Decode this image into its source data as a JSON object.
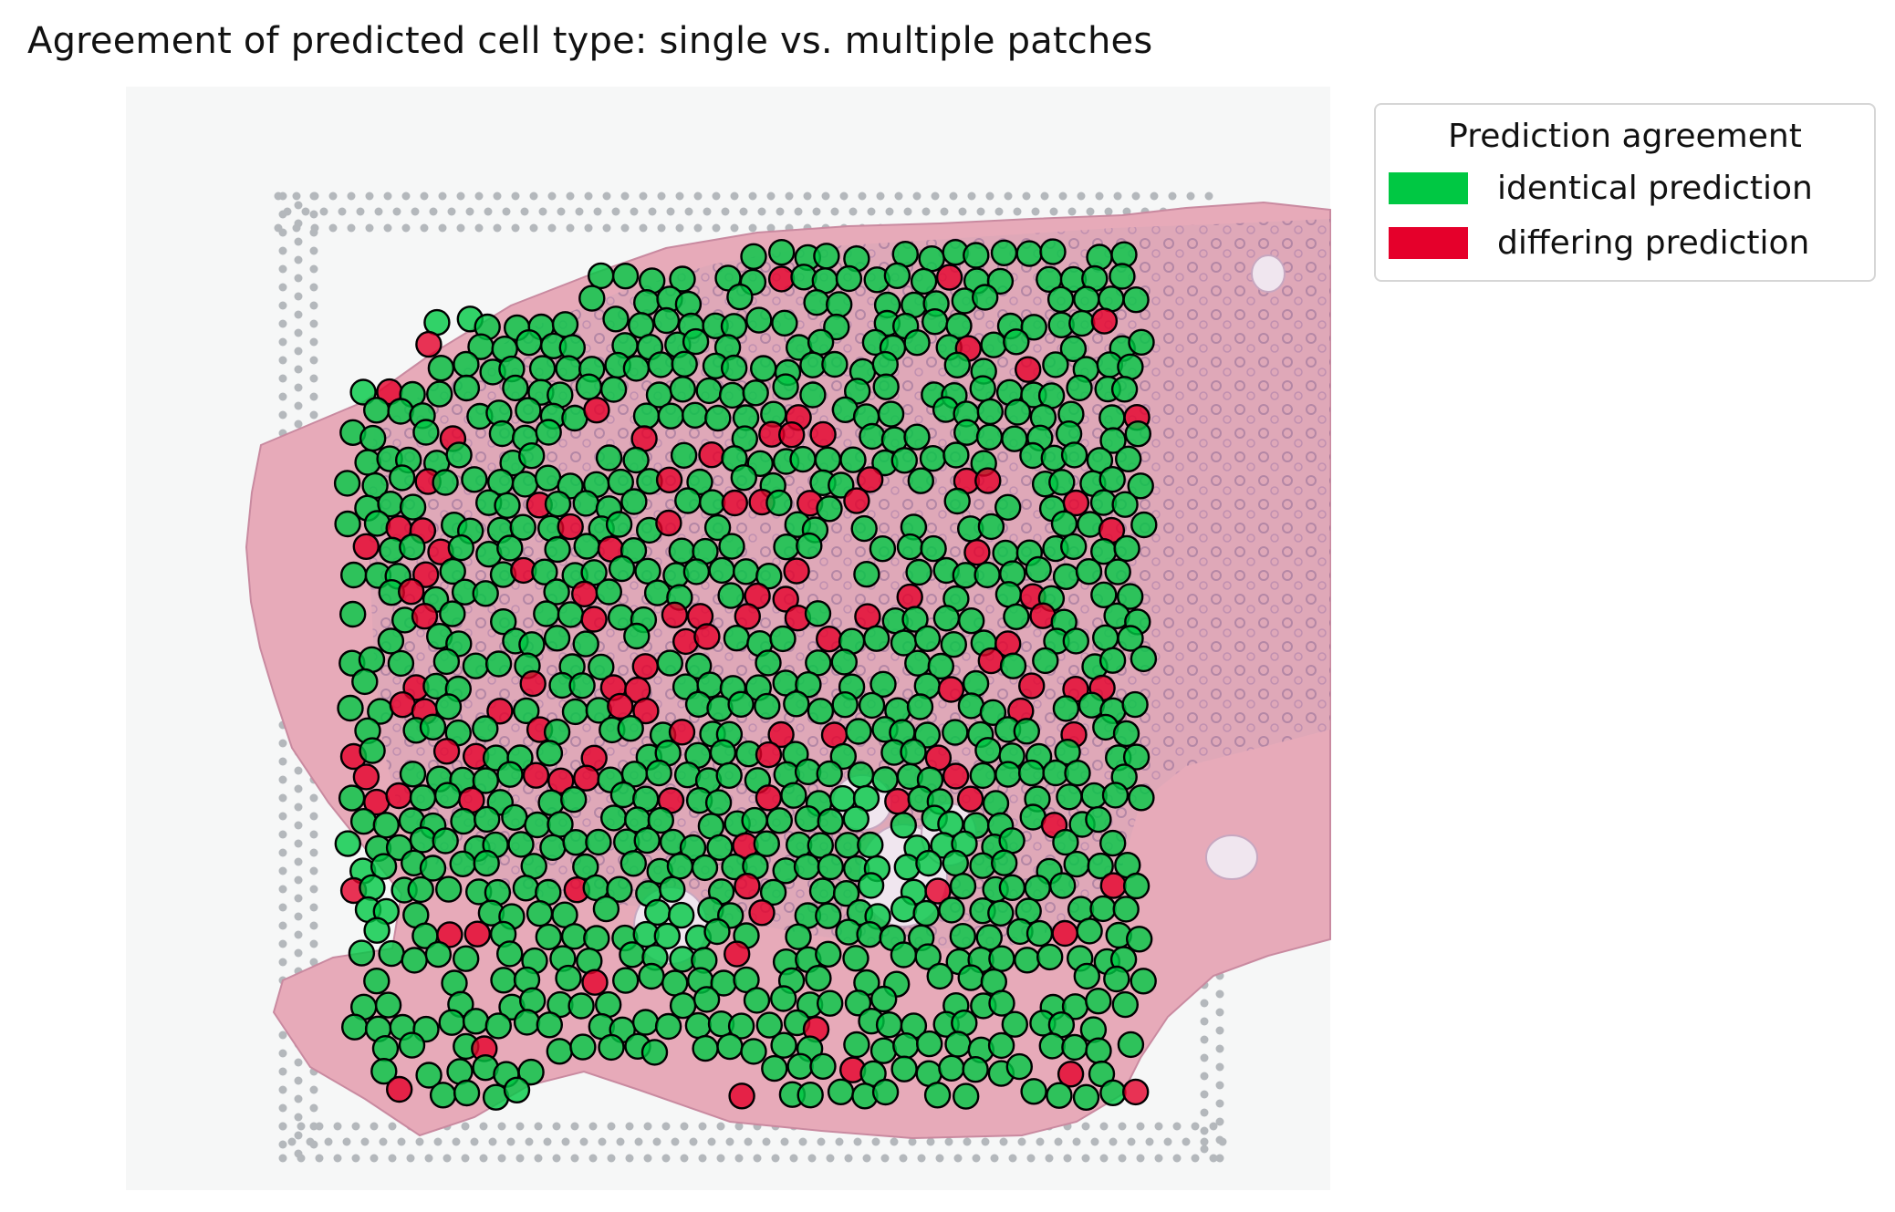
{
  "chart_data": {
    "type": "scatter",
    "title": "Agreement of predicted cell type: single vs. multiple patches",
    "background": "H&E stained tissue section with Visium capture-area fiducial spots",
    "legend": {
      "title": "Prediction agreement",
      "placement": "outside-top-right",
      "entries": [
        {
          "label": "identical prediction",
          "color": "#00c843"
        },
        {
          "label": "differing prediction",
          "color": "#e5002b"
        }
      ]
    },
    "series": [
      {
        "name": "identical prediction",
        "color": "#00c843",
        "approx_count": 1500
      },
      {
        "name": "differing prediction",
        "color": "#e5002b",
        "approx_count": 130
      }
    ],
    "axes": "off",
    "grid": false,
    "marker": {
      "shape": "circle",
      "edge_color": "#000000",
      "alpha": 0.8
    }
  }
}
